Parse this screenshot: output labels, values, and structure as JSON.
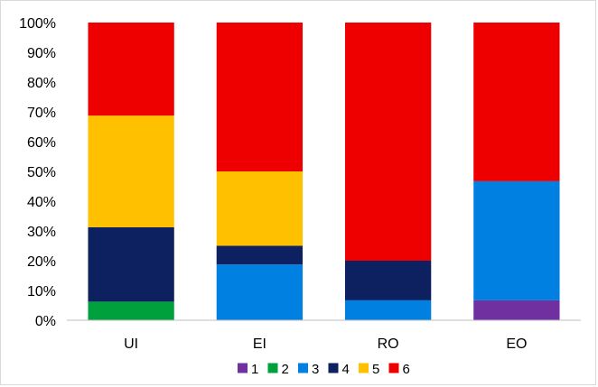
{
  "chart_data": {
    "type": "bar",
    "stacked": true,
    "categories": [
      "UI",
      "EI",
      "RO",
      "EO"
    ],
    "y_tick_labels": [
      "0%",
      "10%",
      "20%",
      "30%",
      "40%",
      "50%",
      "60%",
      "70%",
      "80%",
      "90%",
      "100%"
    ],
    "ylim": [
      0,
      100
    ],
    "grid": false,
    "legend_position": "bottom",
    "series": [
      {
        "name": "1",
        "color": "#7030A0",
        "values": [
          0,
          0,
          0,
          6.7
        ]
      },
      {
        "name": "2",
        "color": "#00A03C",
        "values": [
          6.25,
          0,
          0,
          0
        ]
      },
      {
        "name": "3",
        "color": "#0080E0",
        "values": [
          0,
          18.75,
          6.7,
          40
        ]
      },
      {
        "name": "4",
        "color": "#0D2060",
        "values": [
          25,
          6.25,
          13.3,
          0
        ]
      },
      {
        "name": "5",
        "color": "#FFC000",
        "values": [
          37.5,
          25,
          0,
          0
        ]
      },
      {
        "name": "6",
        "color": "#EE0000",
        "values": [
          31.25,
          50,
          80,
          53.3
        ]
      }
    ]
  }
}
